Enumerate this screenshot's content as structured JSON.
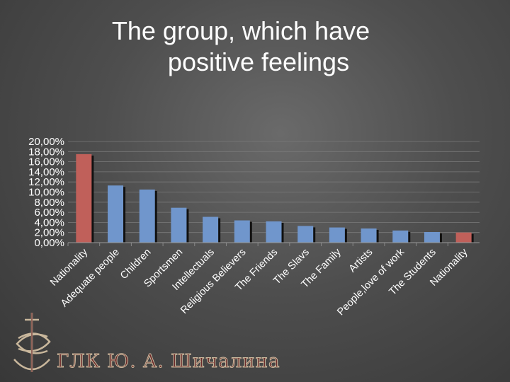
{
  "chart_data": {
    "type": "bar",
    "title": "The group, which have positive feelings",
    "title_lines": [
      "The group, which have",
      "positive feelings"
    ],
    "categories": [
      "Nationality",
      "Adequate people",
      "Children",
      "Sportsmen",
      "Intellectuals",
      "Religious Believers",
      "The Friends",
      "The Slavs",
      "The Family",
      "Artists",
      "People,love of work",
      "The Students",
      "Nationality"
    ],
    "values": [
      17.5,
      11.3,
      10.5,
      6.9,
      5.1,
      4.4,
      4.2,
      3.3,
      3.0,
      2.8,
      2.4,
      2.1,
      2.0
    ],
    "colors": [
      "#c0605a",
      "#7096cc",
      "#7096cc",
      "#7096cc",
      "#7096cc",
      "#7096cc",
      "#7096cc",
      "#7096cc",
      "#7096cc",
      "#7096cc",
      "#7096cc",
      "#7096cc",
      "#c0605a"
    ],
    "yticks": [
      "0,00%",
      "2,00%",
      "4,00%",
      "6,00%",
      "8,00%",
      "10,00%",
      "12,00%",
      "14,00%",
      "16,00%",
      "18,00%",
      "20,00%"
    ],
    "ylim": [
      0,
      20
    ],
    "xlabel": "",
    "ylabel": "",
    "grid": true,
    "legend": "none"
  },
  "logo": {
    "text": "ГЛК Ю. А. Шичалина"
  }
}
